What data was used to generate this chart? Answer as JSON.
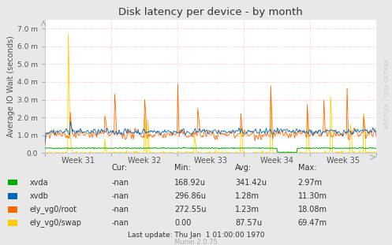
{
  "title": "Disk latency per device - by month",
  "ylabel": "Average IO Wait (seconds)",
  "bg_color": "#E8E8E8",
  "plot_bg_color": "#FFFFFF",
  "ylim": [
    0,
    0.0075
  ],
  "yticks": [
    0.0,
    0.001,
    0.002,
    0.003,
    0.004,
    0.005,
    0.006,
    0.007
  ],
  "ytick_labels": [
    "0.0",
    "1.0 m",
    "2.0 m",
    "3.0 m",
    "4.0 m",
    "5.0 m",
    "6.0 m",
    "7.0 m"
  ],
  "week_labels": [
    "Week 31",
    "Week 32",
    "Week 33",
    "Week 34",
    "Week 35"
  ],
  "legend_entries": [
    {
      "label": "xvda",
      "color": "#00AA00"
    },
    {
      "label": "xvdb",
      "color": "#0066BB"
    },
    {
      "label": "ely_vg0/root",
      "color": "#FF6600"
    },
    {
      "label": "ely_vg0/swap",
      "color": "#FFCC00"
    }
  ],
  "table_headers": [
    "Cur:",
    "Min:",
    "Avg:",
    "Max:"
  ],
  "table_data": [
    [
      "-nan",
      "168.92u",
      "341.42u",
      "2.97m"
    ],
    [
      "-nan",
      "296.86u",
      "1.28m",
      "11.30m"
    ],
    [
      "-nan",
      "272.55u",
      "1.23m",
      "18.08m"
    ],
    [
      "-nan",
      "0.00",
      "87.57u",
      "69.47m"
    ]
  ],
  "footer": "Last update: Thu Jan  1 01:00:00 1970",
  "munin_version": "Munin 2.0.75",
  "watermark": "RRDTOOL / TOBI OETIKER"
}
